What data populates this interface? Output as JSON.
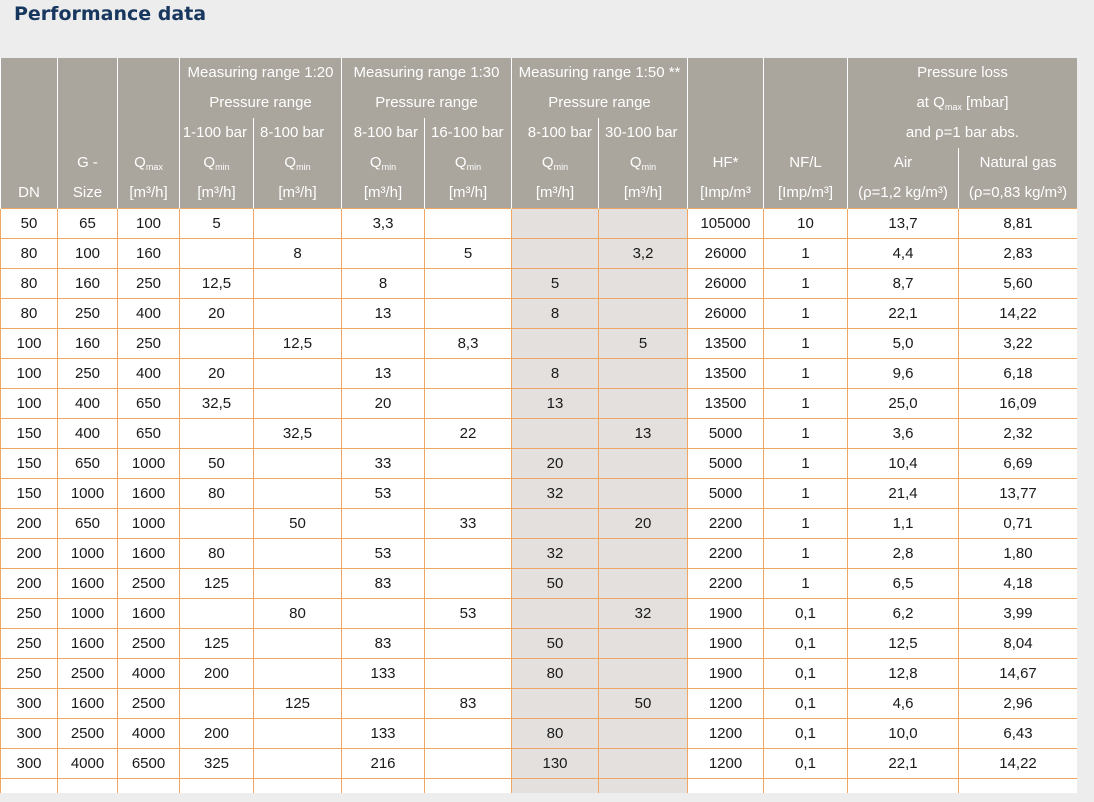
{
  "title": "Performance data",
  "header": {
    "range_120": "Measuring range 1:20",
    "range_130": "Measuring range 1:30",
    "range_150": "Measuring range 1:50 **",
    "pressure_range": "Pressure range",
    "pr_120_a": "1-100 bar",
    "pr_120_b": "8-100 bar",
    "pr_130_a": "8-100 bar",
    "pr_130_b": "16-100 bar",
    "pr_150_a": "8-100 bar",
    "pr_150_b": "30-100 bar",
    "pressure_loss": "Pressure loss",
    "at_q": "at Q",
    "max_sub": "max",
    "mbar": "[mbar]",
    "and_rho": "and ρ=1 bar abs.",
    "q": "Q",
    "min_sub": "min",
    "unit_m3h": "[m³/h]",
    "dn": "DN",
    "g": "G -",
    "size": "Size",
    "hf": "HF*",
    "hf_unit": "[Imp/m³",
    "nf": "NF/L",
    "nf_unit": "[Imp/m³]",
    "air": "Air",
    "air_rho": "(ρ=1,2 kg/m³)",
    "gas": "Natural gas",
    "gas_rho": "(ρ=0,83 kg/m³)"
  },
  "rows": [
    {
      "dn": "50",
      "g": "65",
      "qmax": "100",
      "q20a": "5",
      "q20b": "",
      "q30a": "3,3",
      "q30b": "",
      "q50a": "",
      "q50b": "",
      "hf": "105000",
      "nf": "10",
      "air": "13,7",
      "gas": "8,81"
    },
    {
      "dn": "80",
      "g": "100",
      "qmax": "160",
      "q20a": "",
      "q20b": "8",
      "q30a": "",
      "q30b": "5",
      "q50a": "",
      "q50b": "3,2",
      "hf": "26000",
      "nf": "1",
      "air": "4,4",
      "gas": "2,83"
    },
    {
      "dn": "80",
      "g": "160",
      "qmax": "250",
      "q20a": "12,5",
      "q20b": "",
      "q30a": "8",
      "q30b": "",
      "q50a": "5",
      "q50b": "",
      "hf": "26000",
      "nf": "1",
      "air": "8,7",
      "gas": "5,60"
    },
    {
      "dn": "80",
      "g": "250",
      "qmax": "400",
      "q20a": "20",
      "q20b": "",
      "q30a": "13",
      "q30b": "",
      "q50a": "8",
      "q50b": "",
      "hf": "26000",
      "nf": "1",
      "air": "22,1",
      "gas": "14,22"
    },
    {
      "dn": "100",
      "g": "160",
      "qmax": "250",
      "q20a": "",
      "q20b": "12,5",
      "q30a": "",
      "q30b": "8,3",
      "q50a": "",
      "q50b": "5",
      "hf": "13500",
      "nf": "1",
      "air": "5,0",
      "gas": "3,22"
    },
    {
      "dn": "100",
      "g": "250",
      "qmax": "400",
      "q20a": "20",
      "q20b": "",
      "q30a": "13",
      "q30b": "",
      "q50a": "8",
      "q50b": "",
      "hf": "13500",
      "nf": "1",
      "air": "9,6",
      "gas": "6,18"
    },
    {
      "dn": "100",
      "g": "400",
      "qmax": "650",
      "q20a": "32,5",
      "q20b": "",
      "q30a": "20",
      "q30b": "",
      "q50a": "13",
      "q50b": "",
      "hf": "13500",
      "nf": "1",
      "air": "25,0",
      "gas": "16,09"
    },
    {
      "dn": "150",
      "g": "400",
      "qmax": "650",
      "q20a": "",
      "q20b": "32,5",
      "q30a": "",
      "q30b": "22",
      "q50a": "",
      "q50b": "13",
      "hf": "5000",
      "nf": "1",
      "air": "3,6",
      "gas": "2,32"
    },
    {
      "dn": "150",
      "g": "650",
      "qmax": "1000",
      "q20a": "50",
      "q20b": "",
      "q30a": "33",
      "q30b": "",
      "q50a": "20",
      "q50b": "",
      "hf": "5000",
      "nf": "1",
      "air": "10,4",
      "gas": "6,69"
    },
    {
      "dn": "150",
      "g": "1000",
      "qmax": "1600",
      "q20a": "80",
      "q20b": "",
      "q30a": "53",
      "q30b": "",
      "q50a": "32",
      "q50b": "",
      "hf": "5000",
      "nf": "1",
      "air": "21,4",
      "gas": "13,77"
    },
    {
      "dn": "200",
      "g": "650",
      "qmax": "1000",
      "q20a": "",
      "q20b": "50",
      "q30a": "",
      "q30b": "33",
      "q50a": "",
      "q50b": "20",
      "hf": "2200",
      "nf": "1",
      "air": "1,1",
      "gas": "0,71"
    },
    {
      "dn": "200",
      "g": "1000",
      "qmax": "1600",
      "q20a": "80",
      "q20b": "",
      "q30a": "53",
      "q30b": "",
      "q50a": "32",
      "q50b": "",
      "hf": "2200",
      "nf": "1",
      "air": "2,8",
      "gas": "1,80"
    },
    {
      "dn": "200",
      "g": "1600",
      "qmax": "2500",
      "q20a": "125",
      "q20b": "",
      "q30a": "83",
      "q30b": "",
      "q50a": "50",
      "q50b": "",
      "hf": "2200",
      "nf": "1",
      "air": "6,5",
      "gas": "4,18"
    },
    {
      "dn": "250",
      "g": "1000",
      "qmax": "1600",
      "q20a": "",
      "q20b": "80",
      "q30a": "",
      "q30b": "53",
      "q50a": "",
      "q50b": "32",
      "hf": "1900",
      "nf": "0,1",
      "air": "6,2",
      "gas": "3,99"
    },
    {
      "dn": "250",
      "g": "1600",
      "qmax": "2500",
      "q20a": "125",
      "q20b": "",
      "q30a": "83",
      "q30b": "",
      "q50a": "50",
      "q50b": "",
      "hf": "1900",
      "nf": "0,1",
      "air": "12,5",
      "gas": "8,04"
    },
    {
      "dn": "250",
      "g": "2500",
      "qmax": "4000",
      "q20a": "200",
      "q20b": "",
      "q30a": "133",
      "q30b": "",
      "q50a": "80",
      "q50b": "",
      "hf": "1900",
      "nf": "0,1",
      "air": "12,8",
      "gas": "14,67"
    },
    {
      "dn": "300",
      "g": "1600",
      "qmax": "2500",
      "q20a": "",
      "q20b": "125",
      "q30a": "",
      "q30b": "83",
      "q50a": "",
      "q50b": "50",
      "hf": "1200",
      "nf": "0,1",
      "air": "4,6",
      "gas": "2,96"
    },
    {
      "dn": "300",
      "g": "2500",
      "qmax": "4000",
      "q20a": "200",
      "q20b": "",
      "q30a": "133",
      "q30b": "",
      "q50a": "80",
      "q50b": "",
      "hf": "1200",
      "nf": "0,1",
      "air": "10,0",
      "gas": "6,43"
    },
    {
      "dn": "300",
      "g": "4000",
      "qmax": "6500",
      "q20a": "325",
      "q20b": "",
      "q30a": "216",
      "q30b": "",
      "q50a": "130",
      "q50b": "",
      "hf": "1200",
      "nf": "0,1",
      "air": "22,1",
      "gas": "14,22"
    }
  ],
  "colors": {
    "header_bg": "#aaa59d",
    "grid_line": "#f0a664",
    "shade_bg": "#e3e0de",
    "title": "#17375e"
  }
}
